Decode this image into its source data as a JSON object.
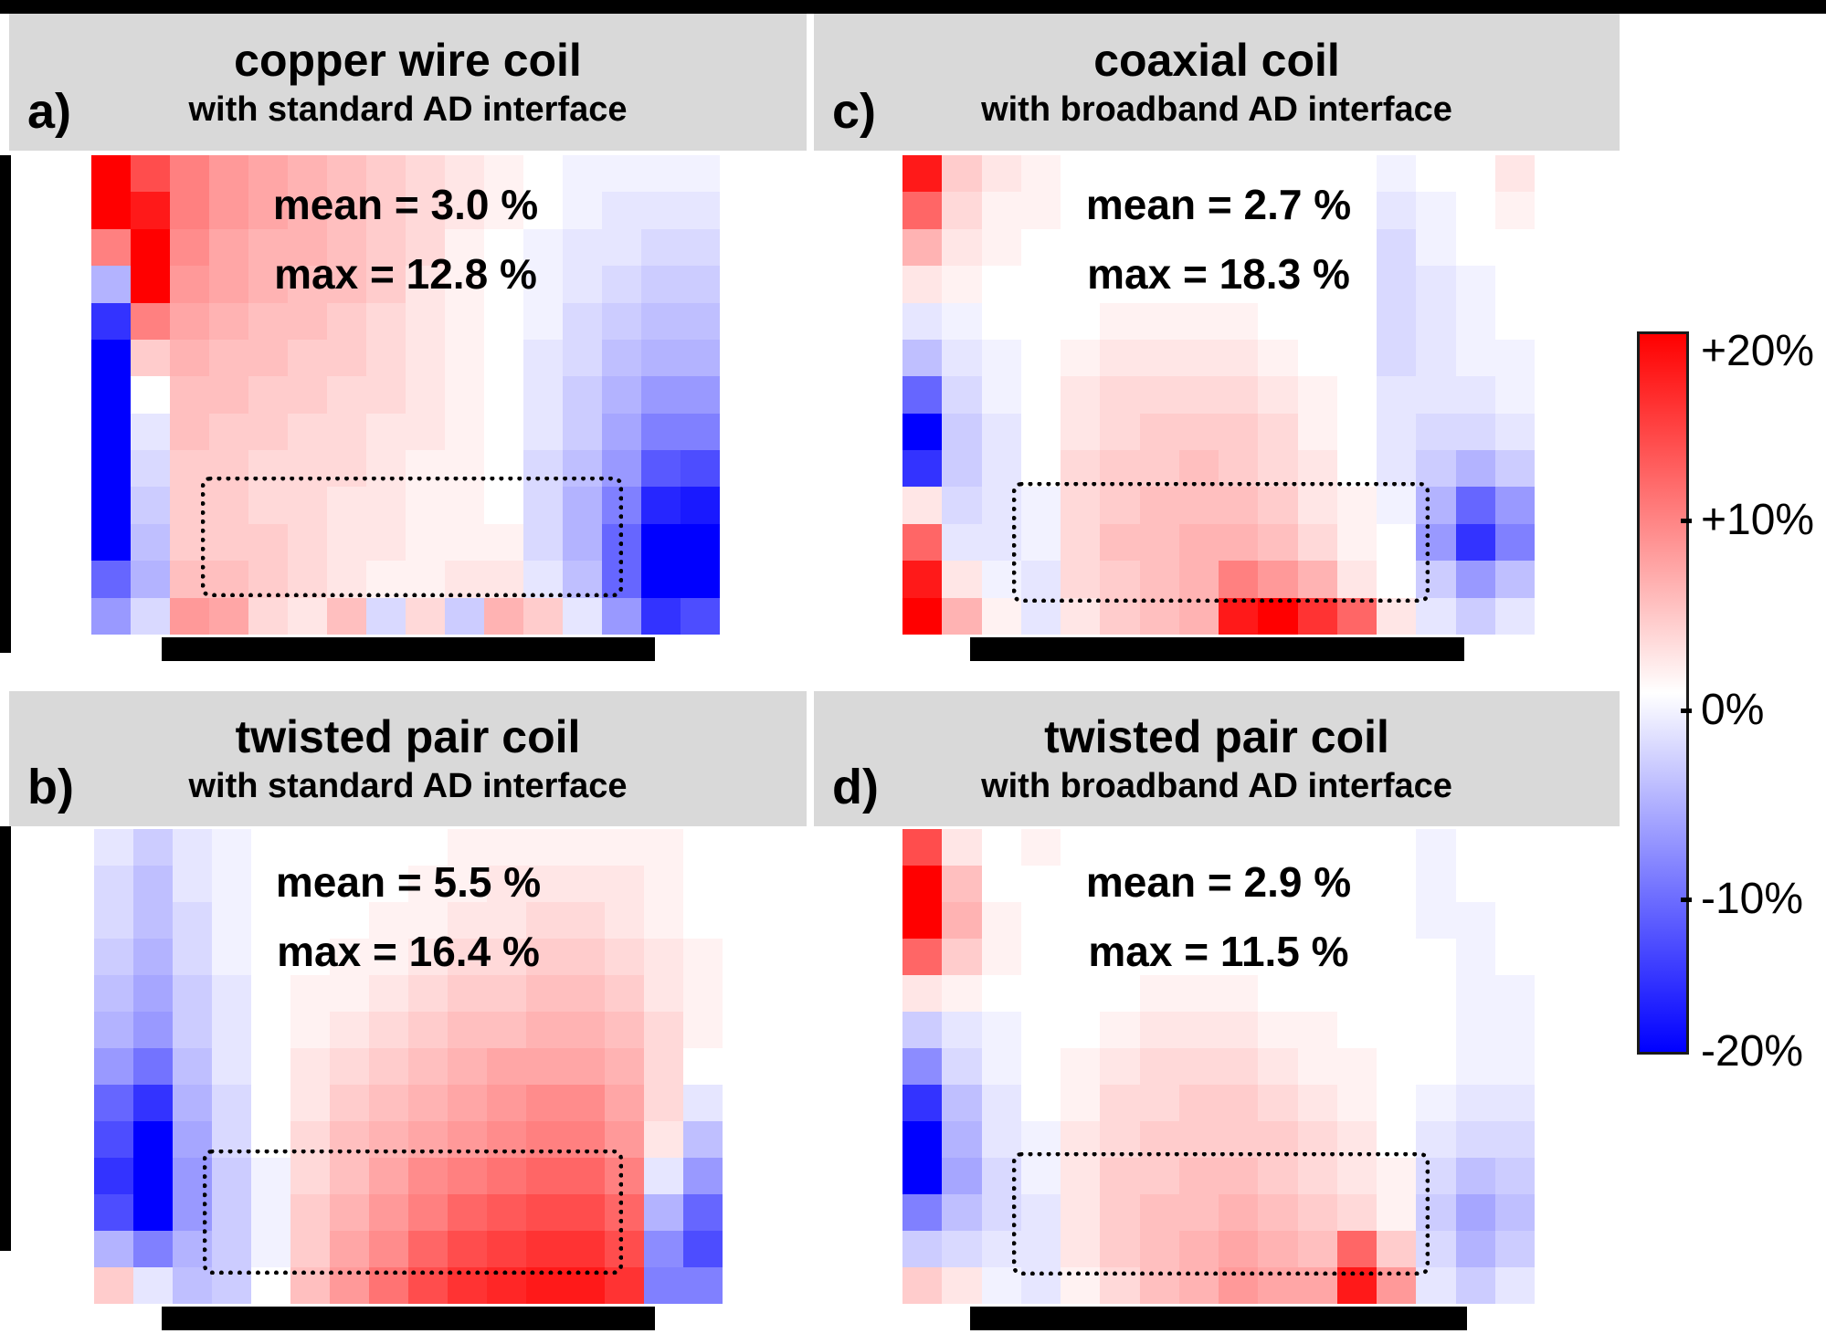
{
  "style": {
    "header_bg": "#d9d9d9",
    "frame_color": "#000000",
    "background": "#ffffff"
  },
  "chart_data": {
    "type": "heatmap",
    "colormap": "blue-white-red",
    "vmin_percent": -20,
    "vmax_percent": 20,
    "grid_order": "rows top to bottom, 16 columns x 13 rows, values are signed percent deviation",
    "colorbar": {
      "labels": [
        "+20%",
        "+10%",
        "0%",
        "-10%",
        "-20%"
      ],
      "top_color": "#ff0000",
      "mid_color": "#ffffff",
      "bottom_color": "#0000ff"
    },
    "panels": [
      {
        "id": "a",
        "label": "a)",
        "title": "copper wire coil",
        "subtitle": "with standard AD interface",
        "mean_label": "mean = 3.0 %",
        "max_label": "max = 12.8 %",
        "mean_percent": 3.0,
        "max_percent": 12.8,
        "grid_percent": [
          [
            20,
            14,
            10,
            8,
            7,
            6,
            5,
            4,
            3,
            2,
            1,
            0,
            -1,
            -1,
            -1,
            -1
          ],
          [
            20,
            18,
            10,
            8,
            7,
            6,
            5,
            4,
            3,
            2,
            1,
            0,
            -1,
            -2,
            -2,
            -2
          ],
          [
            10,
            20,
            9,
            7,
            6,
            6,
            5,
            4,
            3,
            1,
            0,
            -1,
            -2,
            -2,
            -3,
            -3
          ],
          [
            -6,
            20,
            8,
            7,
            6,
            5,
            5,
            4,
            2,
            1,
            0,
            -1,
            -2,
            -3,
            -4,
            -4
          ],
          [
            -16,
            10,
            7,
            6,
            5,
            5,
            4,
            3,
            2,
            1,
            0,
            -1,
            -3,
            -4,
            -5,
            -5
          ],
          [
            -20,
            4,
            6,
            5,
            5,
            4,
            4,
            3,
            2,
            1,
            0,
            -2,
            -3,
            -5,
            -6,
            -6
          ],
          [
            -20,
            0,
            5,
            5,
            4,
            4,
            3,
            3,
            2,
            1,
            0,
            -2,
            -4,
            -6,
            -8,
            -8
          ],
          [
            -20,
            -2,
            5,
            4,
            4,
            3,
            3,
            2,
            2,
            1,
            0,
            -2,
            -4,
            -7,
            -10,
            -10
          ],
          [
            -20,
            -3,
            4,
            4,
            3,
            3,
            3,
            2,
            1,
            1,
            0,
            -3,
            -5,
            -8,
            -13,
            -14
          ],
          [
            -20,
            -4,
            4,
            4,
            3,
            3,
            2,
            2,
            1,
            1,
            0,
            -3,
            -6,
            -10,
            -17,
            -18
          ],
          [
            -20,
            -5,
            4,
            4,
            4,
            3,
            2,
            2,
            1,
            1,
            1,
            -3,
            -6,
            -12,
            -20,
            -20
          ],
          [
            -12,
            -6,
            5,
            5,
            4,
            3,
            2,
            1,
            1,
            2,
            2,
            -2,
            -5,
            -12,
            -20,
            -20
          ],
          [
            -8,
            -3,
            8,
            7,
            3,
            2,
            5,
            -3,
            3,
            -4,
            6,
            4,
            -2,
            -8,
            -16,
            -14
          ]
        ]
      },
      {
        "id": "c",
        "label": "c)",
        "title": "coaxial coil",
        "subtitle": "with broadband AD interface",
        "mean_label": "mean = 2.7 %",
        "max_label": "max = 18.3 %",
        "mean_percent": 2.7,
        "max_percent": 18.3,
        "grid_percent": [
          [
            18,
            4,
            2,
            1,
            0,
            0,
            0,
            0,
            0,
            0,
            0,
            0,
            -1,
            0,
            0,
            2
          ],
          [
            12,
            3,
            1,
            1,
            0,
            0,
            0,
            0,
            0,
            0,
            0,
            0,
            -2,
            -1,
            0,
            1
          ],
          [
            6,
            2,
            1,
            0,
            0,
            0,
            0,
            0,
            0,
            0,
            0,
            0,
            -3,
            -1,
            0,
            0
          ],
          [
            2,
            1,
            0,
            0,
            0,
            0,
            0,
            0,
            0,
            0,
            0,
            0,
            -3,
            -2,
            -1,
            0
          ],
          [
            -2,
            -1,
            0,
            0,
            0,
            1,
            1,
            1,
            1,
            0,
            0,
            0,
            -3,
            -2,
            -1,
            0
          ],
          [
            -5,
            -2,
            -1,
            0,
            1,
            2,
            2,
            2,
            2,
            1,
            0,
            0,
            -3,
            -2,
            -1,
            -1
          ],
          [
            -12,
            -3,
            -1,
            0,
            2,
            3,
            3,
            3,
            3,
            2,
            1,
            0,
            -2,
            -2,
            -2,
            -1
          ],
          [
            -20,
            -4,
            -2,
            0,
            2,
            3,
            4,
            4,
            4,
            3,
            1,
            0,
            -2,
            -3,
            -3,
            -2
          ],
          [
            -16,
            -4,
            -2,
            0,
            3,
            4,
            4,
            5,
            4,
            3,
            2,
            0,
            -2,
            -4,
            -6,
            -4
          ],
          [
            2,
            -3,
            -2,
            -1,
            3,
            4,
            5,
            5,
            5,
            4,
            2,
            1,
            -1,
            -6,
            -12,
            -8
          ],
          [
            12,
            -2,
            -2,
            -1,
            3,
            5,
            5,
            6,
            6,
            5,
            3,
            1,
            0,
            -8,
            -16,
            -10
          ],
          [
            18,
            2,
            -1,
            -2,
            3,
            4,
            5,
            6,
            10,
            8,
            6,
            2,
            0,
            -4,
            -8,
            -5
          ],
          [
            20,
            6,
            1,
            -2,
            2,
            4,
            5,
            6,
            18,
            20,
            16,
            12,
            2,
            -2,
            -4,
            -2
          ]
        ]
      },
      {
        "id": "b",
        "label": "b)",
        "title": "twisted pair coil",
        "subtitle": "with standard AD interface",
        "mean_label": "mean = 5.5 %",
        "max_label": "max = 16.4 %",
        "mean_percent": 5.5,
        "max_percent": 16.4,
        "grid_percent": [
          [
            -2,
            -4,
            -2,
            -1,
            0,
            0,
            0,
            0,
            0,
            1,
            1,
            1,
            1,
            1,
            1,
            0
          ],
          [
            -3,
            -5,
            -2,
            -1,
            0,
            0,
            0,
            0,
            1,
            1,
            2,
            2,
            2,
            2,
            1,
            0
          ],
          [
            -3,
            -5,
            -3,
            -1,
            0,
            0,
            0,
            1,
            1,
            2,
            2,
            3,
            3,
            2,
            1,
            0
          ],
          [
            -4,
            -6,
            -3,
            -1,
            0,
            0,
            1,
            1,
            2,
            3,
            3,
            4,
            4,
            3,
            2,
            1
          ],
          [
            -5,
            -7,
            -4,
            -2,
            0,
            1,
            1,
            2,
            3,
            4,
            4,
            5,
            5,
            4,
            2,
            1
          ],
          [
            -6,
            -8,
            -4,
            -2,
            0,
            1,
            2,
            3,
            4,
            5,
            5,
            6,
            6,
            5,
            3,
            1
          ],
          [
            -8,
            -11,
            -5,
            -2,
            0,
            2,
            3,
            4,
            5,
            6,
            7,
            7,
            7,
            6,
            3,
            0
          ],
          [
            -12,
            -16,
            -6,
            -3,
            0,
            2,
            4,
            5,
            6,
            7,
            8,
            9,
            9,
            7,
            3,
            -2
          ],
          [
            -14,
            -20,
            -7,
            -3,
            0,
            3,
            5,
            6,
            7,
            8,
            9,
            10,
            10,
            8,
            2,
            -5
          ],
          [
            -16,
            -20,
            -8,
            -4,
            -1,
            3,
            5,
            7,
            9,
            10,
            11,
            12,
            12,
            10,
            -2,
            -8
          ],
          [
            -14,
            -20,
            -8,
            -4,
            -1,
            4,
            6,
            8,
            10,
            12,
            13,
            14,
            14,
            12,
            -6,
            -12
          ],
          [
            -6,
            -10,
            -6,
            -4,
            -1,
            4,
            7,
            9,
            12,
            14,
            15,
            16,
            16,
            14,
            -9,
            -14
          ],
          [
            4,
            -2,
            -5,
            -4,
            0,
            5,
            8,
            11,
            14,
            16,
            17,
            18,
            18,
            16,
            -10,
            -10
          ]
        ]
      },
      {
        "id": "d",
        "label": "d)",
        "title": "twisted pair coil",
        "subtitle": "with broadband AD interface",
        "mean_label": "mean = 2.9 %",
        "max_label": "max = 11.5 %",
        "mean_percent": 2.9,
        "max_percent": 11.5,
        "grid_percent": [
          [
            14,
            2,
            0,
            1,
            0,
            0,
            0,
            0,
            0,
            0,
            0,
            0,
            0,
            -1,
            0,
            0
          ],
          [
            20,
            5,
            0,
            0,
            0,
            0,
            0,
            0,
            0,
            0,
            0,
            0,
            0,
            -1,
            0,
            0
          ],
          [
            20,
            6,
            1,
            0,
            0,
            0,
            0,
            0,
            0,
            0,
            0,
            0,
            0,
            -1,
            -1,
            0
          ],
          [
            12,
            4,
            1,
            0,
            0,
            0,
            0,
            0,
            0,
            0,
            0,
            0,
            0,
            0,
            -1,
            0
          ],
          [
            2,
            1,
            0,
            0,
            0,
            0,
            1,
            1,
            1,
            0,
            0,
            0,
            0,
            0,
            -1,
            -1
          ],
          [
            -4,
            -2,
            -1,
            0,
            0,
            1,
            2,
            2,
            2,
            1,
            1,
            0,
            0,
            0,
            -1,
            -1
          ],
          [
            -9,
            -3,
            -1,
            0,
            1,
            2,
            3,
            3,
            3,
            2,
            1,
            1,
            0,
            0,
            -1,
            -1
          ],
          [
            -16,
            -5,
            -2,
            0,
            1,
            3,
            3,
            4,
            4,
            3,
            2,
            1,
            0,
            -1,
            -2,
            -2
          ],
          [
            -20,
            -6,
            -2,
            -1,
            2,
            3,
            4,
            4,
            4,
            4,
            3,
            2,
            0,
            -2,
            -3,
            -3
          ],
          [
            -20,
            -7,
            -3,
            -1,
            2,
            4,
            4,
            5,
            5,
            4,
            3,
            2,
            1,
            -3,
            -5,
            -4
          ],
          [
            -10,
            -5,
            -3,
            -2,
            2,
            4,
            5,
            5,
            6,
            5,
            4,
            3,
            1,
            -4,
            -7,
            -5
          ],
          [
            -4,
            -3,
            -2,
            -2,
            2,
            4,
            5,
            6,
            7,
            6,
            5,
            12,
            4,
            -3,
            -6,
            -4
          ],
          [
            4,
            2,
            -1,
            -2,
            1,
            3,
            5,
            6,
            8,
            7,
            7,
            18,
            8,
            -2,
            -4,
            -2
          ]
        ]
      }
    ]
  }
}
